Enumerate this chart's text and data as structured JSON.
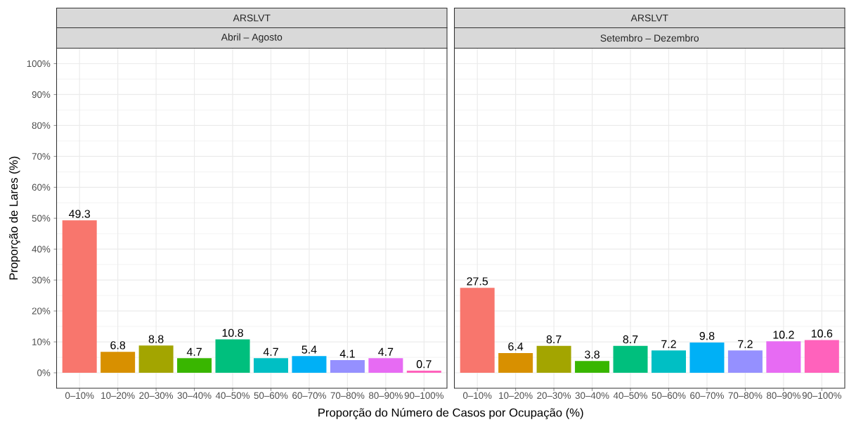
{
  "chart_data": [
    {
      "type": "bar",
      "title": "ARSLVT",
      "subtitle": "Abril – Agosto",
      "ylabel": "Proporção de Lares (%)",
      "xlabel": "Proporção do Número de Casos por Ocupação (%)",
      "categories": [
        "0–10%",
        "10–20%",
        "20–30%",
        "30–40%",
        "40–50%",
        "50–60%",
        "60–70%",
        "70–80%",
        "80–90%",
        "90–100%"
      ],
      "values": [
        49.3,
        6.8,
        8.8,
        4.7,
        10.8,
        4.7,
        5.4,
        4.1,
        4.7,
        0.7
      ],
      "colors": [
        "#F8766D",
        "#D89000",
        "#A3A500",
        "#39B600",
        "#00BF7D",
        "#00BFC4",
        "#00B0F6",
        "#9590FF",
        "#E76BF3",
        "#FF62BC"
      ],
      "ylim": [
        -5,
        105
      ],
      "yticks": [
        {
          "value": 0,
          "label": "0%"
        },
        {
          "value": 10,
          "label": "10%"
        },
        {
          "value": 20,
          "label": "20%"
        },
        {
          "value": 30,
          "label": "30%"
        },
        {
          "value": 40,
          "label": "40%"
        },
        {
          "value": 50,
          "label": "50%"
        },
        {
          "value": 60,
          "label": "60%"
        },
        {
          "value": 70,
          "label": "70%"
        },
        {
          "value": 80,
          "label": "80%"
        },
        {
          "value": 90,
          "label": "90%"
        },
        {
          "value": 100,
          "label": "100%"
        }
      ],
      "grid": true,
      "data_labels": true
    },
    {
      "type": "bar",
      "title": "ARSLVT",
      "subtitle": "Setembro – Dezembro",
      "categories": [
        "0–10%",
        "10–20%",
        "20–30%",
        "30–40%",
        "40–50%",
        "50–60%",
        "60–70%",
        "70–80%",
        "80–90%",
        "90–100%"
      ],
      "values": [
        27.5,
        6.4,
        8.7,
        3.8,
        8.7,
        7.2,
        9.8,
        7.2,
        10.2,
        10.6
      ],
      "colors": [
        "#F8766D",
        "#D89000",
        "#A3A500",
        "#39B600",
        "#00BF7D",
        "#00BFC4",
        "#00B0F6",
        "#9590FF",
        "#E76BF3",
        "#FF62BC"
      ],
      "ylim": [
        -5,
        105
      ],
      "yticks": [
        {
          "value": 0,
          "label": null
        },
        {
          "value": 10,
          "label": null
        },
        {
          "value": 20,
          "label": null
        },
        {
          "value": 30,
          "label": null
        },
        {
          "value": 40,
          "label": null
        },
        {
          "value": 50,
          "label": null
        },
        {
          "value": 60,
          "label": null
        },
        {
          "value": 70,
          "label": null
        },
        {
          "value": 80,
          "label": null
        },
        {
          "value": 90,
          "label": null
        },
        {
          "value": 100,
          "label": null
        }
      ],
      "tick_labels": "x",
      "grid": true,
      "data_labels": true
    }
  ]
}
